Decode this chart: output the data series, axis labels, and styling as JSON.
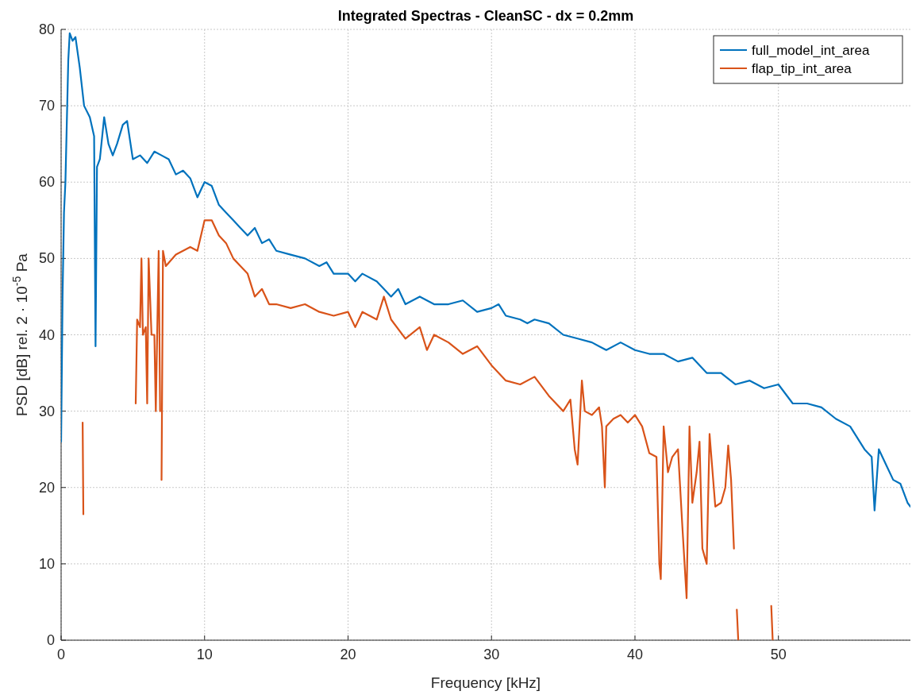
{
  "chart_data": {
    "type": "line",
    "title": "Integrated Spectras - CleanSC - dx = 0.2mm",
    "xlabel": "Frequency [kHz]",
    "ylabel": "PSD [dB] rel. 2 · 10$^{-5}$ Pa",
    "xlim": [
      0,
      59.2
    ],
    "ylim": [
      0,
      80
    ],
    "xticks": [
      0,
      10,
      20,
      30,
      40,
      50
    ],
    "yticks": [
      0,
      10,
      20,
      30,
      40,
      50,
      60,
      70,
      80
    ],
    "grid": true,
    "legend": "top right",
    "line_style": "solid",
    "marker": "none",
    "series": [
      {
        "name": "full_model_int_area",
        "color": "#0072bd",
        "x": [
          0,
          0.1,
          0.2,
          0.3,
          0.5,
          0.6,
          0.8,
          1.0,
          1.3,
          1.6,
          2.0,
          2.3,
          2.4,
          2.5,
          2.7,
          3.0,
          3.3,
          3.6,
          3.9,
          4.3,
          4.6,
          5.0,
          5.5,
          6.0,
          6.5,
          7.0,
          7.5,
          8.0,
          8.5,
          9.0,
          9.5,
          10,
          10.5,
          11,
          11.5,
          12,
          12.5,
          13,
          13.5,
          14,
          14.5,
          15,
          16,
          17,
          18,
          18.5,
          19,
          20,
          20.5,
          21,
          22,
          22.5,
          23,
          23.5,
          24,
          25,
          26,
          27,
          28,
          29,
          30,
          30.5,
          31,
          32,
          32.5,
          33,
          34,
          35,
          36,
          37,
          37.5,
          38,
          39,
          40,
          41,
          42,
          43,
          44,
          45,
          46,
          47,
          48,
          49,
          50,
          51,
          52,
          53,
          54,
          55,
          56,
          56.5,
          56.7,
          57,
          57.5,
          58,
          58.5,
          59,
          59.2
        ],
        "values": [
          26,
          45,
          56,
          60,
          76,
          79.5,
          78.5,
          79,
          75,
          70,
          68.5,
          66,
          38.5,
          62,
          63,
          68.5,
          65,
          63.5,
          65,
          67.5,
          68,
          63,
          63.5,
          62.5,
          64,
          63.5,
          63,
          61,
          61.5,
          60.5,
          58,
          60,
          59.5,
          57,
          56,
          55,
          54,
          53,
          54,
          52,
          52.5,
          51,
          50.5,
          50,
          49,
          49.5,
          48,
          48,
          47,
          48,
          47,
          46,
          45,
          46,
          44,
          45,
          44,
          44,
          44.5,
          43,
          43.5,
          44,
          42.5,
          42,
          41.5,
          42,
          41.5,
          40,
          39.5,
          39,
          38.5,
          38,
          39,
          38,
          37.5,
          37.5,
          36.5,
          37,
          35,
          35,
          33.5,
          34,
          33,
          33.5,
          31,
          31,
          30.5,
          29,
          28,
          25,
          24,
          17,
          25,
          23,
          21,
          20.5,
          18,
          17.5
        ]
      },
      {
        "name": "flap_tip_int_area",
        "color": "#d95319",
        "x": [
          1.5,
          1.55,
          null,
          5.2,
          5.3,
          5.5,
          5.6,
          5.7,
          5.9,
          6.0,
          6.1,
          6.3,
          6.5,
          6.6,
          6.8,
          6.9,
          null,
          7.0,
          7.1,
          7.3,
          8,
          8.5,
          9.0,
          9.5,
          10,
          10.5,
          11,
          11.5,
          12,
          12.5,
          13,
          13.5,
          14,
          14.5,
          15,
          16,
          17,
          18,
          19,
          20,
          20.5,
          21,
          22,
          22.5,
          23,
          24,
          25,
          25.5,
          26,
          27,
          28,
          29,
          30,
          31,
          32,
          33,
          34,
          35,
          35.5,
          35.8,
          36,
          36.3,
          36.5,
          37,
          37.5,
          37.7,
          37.9,
          38,
          38.5,
          39,
          39.5,
          40,
          40.5,
          41,
          41.5,
          41.7,
          41.8,
          42,
          42.3,
          42.6,
          43,
          43.3,
          43.6,
          43.8,
          44,
          44.3,
          44.5,
          44.7,
          45,
          45.2,
          45.6,
          46,
          46.3,
          46.5,
          46.7,
          46.9,
          null,
          47.1,
          47.2,
          null,
          49.5,
          49.6
        ],
        "values": [
          28.5,
          16.5,
          null,
          31,
          42,
          41,
          50,
          40,
          41,
          31,
          50,
          40,
          40,
          30,
          51,
          30,
          null,
          21,
          51,
          49,
          50.5,
          51,
          51.5,
          51,
          55,
          55,
          53,
          52,
          50,
          49,
          48,
          45,
          46,
          44,
          44,
          43.5,
          44,
          43,
          42.5,
          43,
          41,
          43,
          42,
          45,
          42,
          39.5,
          41,
          38,
          40,
          39,
          37.5,
          38.5,
          36,
          34,
          33.5,
          34.5,
          32,
          30,
          31.5,
          25,
          23,
          34,
          30,
          29.5,
          30.5,
          28,
          20,
          28,
          29,
          29.5,
          28.5,
          29.5,
          28,
          24.5,
          24,
          10,
          8,
          28,
          22,
          24,
          25,
          15,
          5.5,
          28,
          18,
          22,
          26,
          12,
          10,
          27,
          17.5,
          18,
          20,
          25.5,
          21,
          12,
          null,
          4,
          0,
          null,
          4.5,
          0
        ]
      }
    ]
  }
}
